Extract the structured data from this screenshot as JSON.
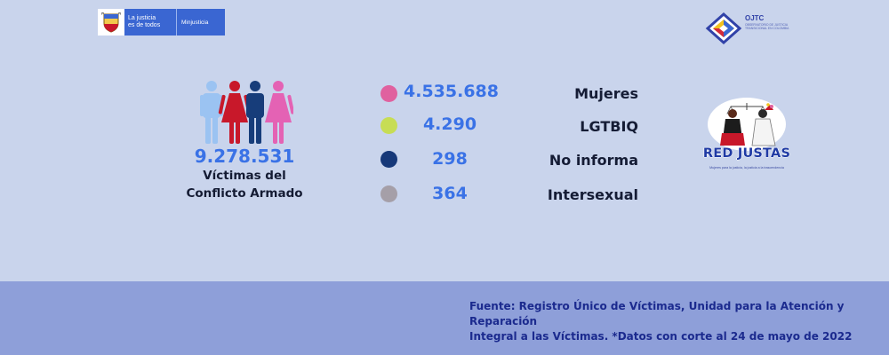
{
  "logos": {
    "ministry_slogan_line1": "La justicia",
    "ministry_slogan_line2": "es de todos",
    "ministry_name": "Minjusticia",
    "ojtc_name": "OJTC",
    "ojtc_subtitle": "OBSERVATORIO DE JUSTICIA TRANSICIONAL EN COLOMBIA",
    "red_justas_name": "RED JUSTAS",
    "red_justas_tagline": "Mujeres para la justicia, la justicia a la trascendencia"
  },
  "summary": {
    "total": "9.278.531",
    "label_line1": "Víctimas del",
    "label_line2": "Conflicto Armado"
  },
  "stats": [
    {
      "value": "4.535.688",
      "label": "Mujeres",
      "color": "#e0619f"
    },
    {
      "value": "4.290",
      "label": "LGTBIQ",
      "color": "#c7dd55"
    },
    {
      "value": "298",
      "label": "No informa",
      "color": "#163879"
    },
    {
      "value": "364",
      "label": "Intersexual",
      "color": "#a59fa8"
    }
  ],
  "figure_colors": {
    "light_blue": "#9bc3f2",
    "red": "#c8182a",
    "navy": "#173d7a",
    "pink": "#e462b4"
  },
  "source": {
    "line1": "Fuente: Registro Único de Víctimas, Unidad para la Atención y Reparación",
    "line2": "Integral a las Víctimas. *Datos con corte al 24 de mayo de 2022"
  }
}
